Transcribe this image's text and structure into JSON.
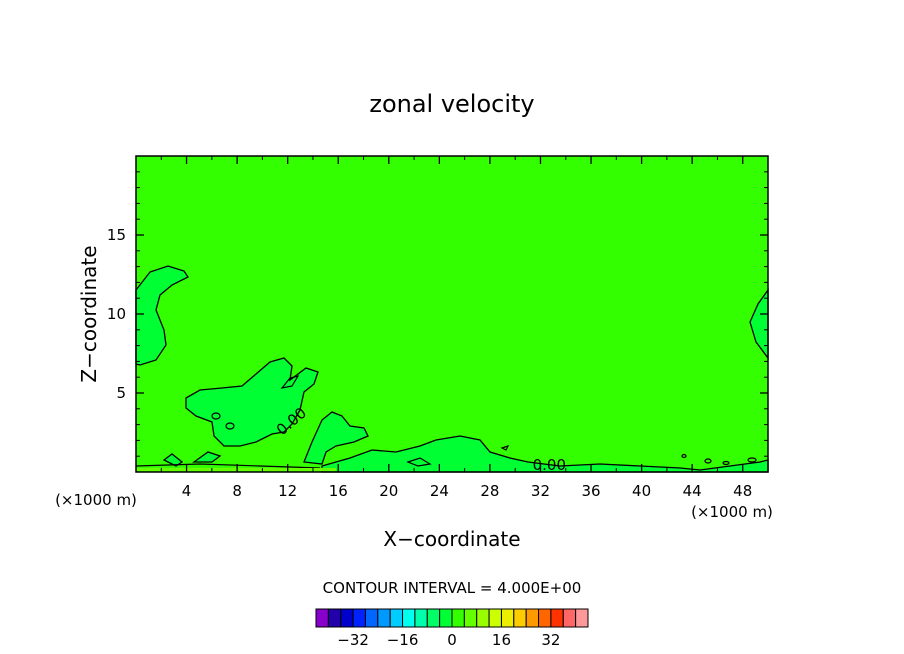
{
  "chart_data": {
    "type": "contour",
    "title": "zonal velocity",
    "xlabel": "X−coordinate",
    "ylabel": "Z−coordinate",
    "x_unit_left": "(×1000 m)",
    "x_unit_right": "(×1000 m)",
    "xlim": [
      0,
      50
    ],
    "ylim": [
      0,
      20
    ],
    "x_ticks": [
      4,
      8,
      12,
      16,
      20,
      24,
      28,
      32,
      36,
      40,
      44,
      48
    ],
    "x_tick_labels": [
      "4",
      "8",
      "12",
      "16",
      "20",
      "24",
      "28",
      "32",
      "36",
      "40",
      "44",
      "48"
    ],
    "y_ticks": [
      5,
      10,
      15
    ],
    "y_tick_labels": [
      "5",
      "10",
      "15"
    ],
    "contour_labels": [
      {
        "text": "0.00",
        "x": 12.3,
        "y": 3.2,
        "angle": -40
      },
      {
        "text": "0.00",
        "x": 32.7,
        "y": 0.45,
        "angle": 0
      }
    ],
    "background_level": 0,
    "background_color": "#33ff00",
    "positive_region_color": "#00ff33",
    "contour_interval_text": "CONTOUR INTERVAL = 4.000E+00",
    "colorbar": {
      "colors": [
        "#8800cc",
        "#2200aa",
        "#0000cc",
        "#0022ff",
        "#0066ff",
        "#0099ff",
        "#00ccff",
        "#00ffee",
        "#00ffaa",
        "#00ff66",
        "#00ff33",
        "#33ff00",
        "#66ff00",
        "#99ff00",
        "#ccff00",
        "#eeee00",
        "#ffcc00",
        "#ff9900",
        "#ff6600",
        "#ff3300",
        "#ff6666",
        "#ff9999"
      ],
      "tick_labels": [
        "−32",
        "−16",
        "0",
        "16",
        "32"
      ],
      "tick_values": [
        -32,
        -16,
        0,
        16,
        32
      ],
      "min": -44,
      "max": 44
    }
  }
}
